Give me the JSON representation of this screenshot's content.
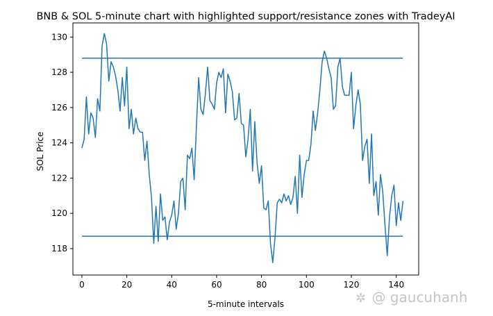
{
  "chart_data": {
    "type": "line",
    "title": "BNB & SOL 5-minute chart with highlighted support/resistance zones with TradeyAI",
    "xlabel": "5-minute intervals",
    "ylabel": "SOL Price",
    "xlim": [
      -4,
      150
    ],
    "ylim": [
      116.5,
      130.8
    ],
    "xticks": [
      0,
      20,
      40,
      60,
      80,
      100,
      120,
      140
    ],
    "yticks": [
      118,
      120,
      122,
      124,
      126,
      128,
      130
    ],
    "grid": false,
    "line_color": "#1f77b4",
    "series": [
      {
        "values": [
          123.7,
          124.2,
          126.6,
          124.5,
          125.7,
          125.4,
          124.3,
          126.5,
          125.8,
          129.5,
          130.2,
          129.6,
          127.5,
          128.6,
          128.3,
          127.8,
          127.0,
          125.8,
          127.7,
          126.1,
          128.3,
          124.8,
          125.9,
          124.5,
          125.4,
          124.8,
          124.6,
          124.6,
          123.0,
          124.1,
          122.2,
          120.9,
          118.3,
          120.4,
          118.4,
          121.1,
          119.6,
          119.8,
          118.5,
          119.5,
          119.9,
          120.7,
          119.1,
          120.0,
          121.8,
          122.0,
          120.2,
          123.3,
          123.1,
          123.7,
          121.9,
          124.9,
          127.7,
          125.9,
          125.6,
          126.8,
          128.3,
          126.4,
          126.2,
          125.9,
          127.4,
          128.0,
          127.7,
          128.2,
          125.7,
          127.9,
          127.5,
          126.9,
          125.3,
          125.4,
          126.8,
          125.1,
          125.0,
          123.2,
          124.2,
          125.9,
          122.4,
          125.2,
          122.9,
          121.7,
          122.7,
          120.3,
          120.2,
          120.7,
          118.3,
          117.2,
          118.6,
          120.6,
          120.8,
          120.6,
          121.1,
          120.7,
          121.0,
          120.5,
          120.9,
          122.1,
          120.0,
          123.3,
          120.9,
          122.2,
          123.0,
          123.0,
          123.9,
          125.8,
          124.7,
          125.7,
          127.0,
          128.6,
          129.2,
          128.8,
          128.2,
          127.7,
          125.9,
          126.1,
          128.3,
          128.8,
          127.2,
          126.7,
          126.7,
          126.7,
          128.0,
          124.8,
          126.1,
          127.0,
          126.2,
          123.0,
          123.8,
          124.2,
          121.7,
          124.5,
          121.0,
          121.8,
          119.9,
          122.2,
          121.2,
          119.3,
          117.6,
          119.8,
          121.0,
          121.6,
          119.3,
          120.6,
          119.6,
          120.7
        ]
      }
    ],
    "horizontal_lines": [
      {
        "y": 128.8,
        "x_range": [
          0,
          143
        ]
      },
      {
        "y": 118.7,
        "x_range": [
          0,
          143
        ]
      }
    ]
  },
  "watermark": {
    "icon": "✲",
    "text": "@ gaucuhanh"
  }
}
